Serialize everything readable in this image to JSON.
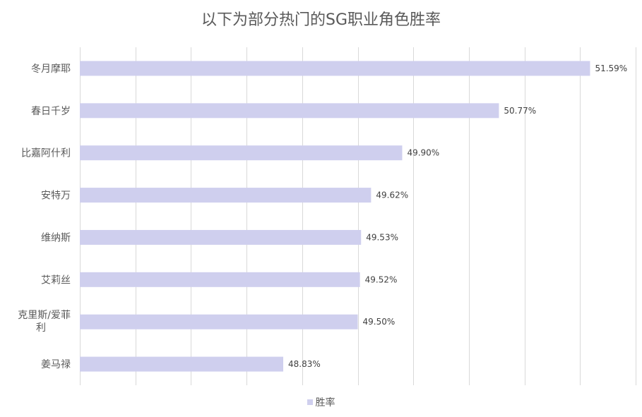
{
  "colors": {
    "bar": "#cfcfee",
    "grid": "#d9d9d9",
    "text": "#595959"
  },
  "chart_data": {
    "type": "bar",
    "orientation": "horizontal",
    "title": "以下为部分热门的SG职业角色胜率",
    "categories": [
      "冬月摩耶",
      "春日千岁",
      "比嘉阿什利",
      "安特万",
      "维纳斯",
      "艾莉丝",
      "克里斯/爱菲利",
      "姜马禄"
    ],
    "value_labels": [
      "51.59%",
      "50.77%",
      "49.90%",
      "49.62%",
      "49.53%",
      "49.52%",
      "49.50%",
      "48.83%"
    ],
    "series": [
      {
        "name": "胜率",
        "values": [
          51.59,
          50.77,
          49.9,
          49.62,
          49.53,
          49.52,
          49.5,
          48.83
        ]
      }
    ],
    "xlim": [
      47.0,
      52.0
    ],
    "grid": true,
    "legend": "bottom"
  }
}
